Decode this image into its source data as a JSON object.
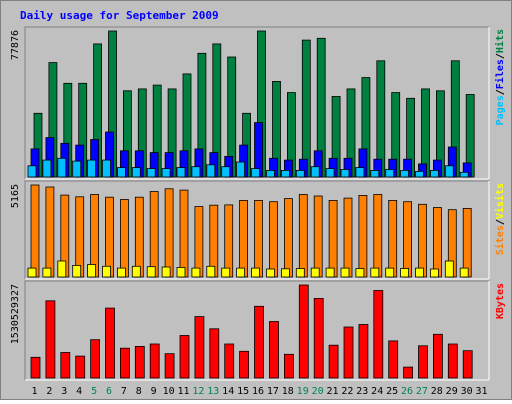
{
  "title": "Daily usage for September 2009",
  "colors": {
    "background": "#c0c0c0",
    "plot_bg": "#c0c0c0",
    "title": "#0000ff",
    "hits": "#008040",
    "files": "#0000ff",
    "pages": "#00c0ff",
    "visits": "#ff8000",
    "sites": "#ffff00",
    "kbytes": "#ff0000",
    "label_default": "#000000",
    "label_weekend": "#00805c"
  },
  "chart_data": [
    {
      "type": "bar",
      "panel": "hits-files-pages",
      "ymax_label": "77876",
      "ymax": 77876,
      "legend": [
        {
          "text": "Hits",
          "color": "#008040"
        },
        {
          "text": "/",
          "color": "#000000"
        },
        {
          "text": "Files",
          "color": "#0000ff"
        },
        {
          "text": "/",
          "color": "#000000"
        },
        {
          "text": "Pages",
          "color": "#00c0ff"
        }
      ],
      "series": [
        {
          "name": "Hits",
          "values": [
            34000,
            61000,
            50000,
            50000,
            71000,
            77876,
            46000,
            47000,
            49000,
            47000,
            55000,
            66000,
            71000,
            64000,
            34000,
            77876,
            51000,
            45000,
            73000,
            74000,
            43000,
            47000,
            53000,
            62000,
            45000,
            42000,
            47000,
            46000,
            62000,
            44000,
            0
          ]
        },
        {
          "name": "Files",
          "values": [
            15000,
            21000,
            18000,
            17000,
            20000,
            24000,
            14000,
            14000,
            13000,
            13000,
            14000,
            15000,
            13000,
            11000,
            17000,
            29000,
            10000,
            9000,
            9500,
            14000,
            10000,
            10000,
            15000,
            9500,
            9500,
            9500,
            7000,
            9000,
            16000,
            7500,
            0
          ]
        },
        {
          "name": "Pages",
          "values": [
            6000,
            9000,
            10000,
            8500,
            9000,
            9000,
            5000,
            5000,
            4500,
            4500,
            5000,
            5500,
            6500,
            5500,
            8000,
            4500,
            3500,
            3500,
            3500,
            5500,
            4500,
            4000,
            5000,
            3500,
            4000,
            3500,
            3000,
            3500,
            6000,
            2500,
            0
          ]
        }
      ]
    },
    {
      "type": "bar",
      "panel": "visits-sites",
      "ymax_label": "5165",
      "ymax": 5165,
      "legend": [
        {
          "text": "Visits",
          "color": "#ffff00"
        },
        {
          "text": "/",
          "color": "#000000"
        },
        {
          "text": "Sites",
          "color": "#ff8000"
        }
      ],
      "series": [
        {
          "name": "Visits",
          "values": [
            5165,
            5050,
            4600,
            4500,
            4630,
            4480,
            4350,
            4480,
            4800,
            4950,
            4880,
            3950,
            4030,
            4050,
            4300,
            4300,
            4230,
            4400,
            4630,
            4550,
            4300,
            4430,
            4580,
            4630,
            4300,
            4230,
            4080,
            3900,
            3780,
            3850,
            0
          ]
        },
        {
          "name": "Sites",
          "values": [
            500,
            500,
            900,
            650,
            700,
            600,
            500,
            600,
            580,
            560,
            540,
            500,
            600,
            500,
            500,
            500,
            450,
            460,
            480,
            500,
            500,
            500,
            480,
            500,
            500,
            480,
            500,
            450,
            900,
            500,
            0
          ]
        }
      ]
    },
    {
      "type": "bar",
      "panel": "kbytes",
      "ymax_label": "1530529327",
      "ymax": 1530529327,
      "legend": [
        {
          "text": "KBytes",
          "color": "#ff0000"
        }
      ],
      "series": [
        {
          "name": "KBytes",
          "values": [
            340000000,
            1270000000,
            420000000,
            360000000,
            630000000,
            1150000000,
            490000000,
            520000000,
            560000000,
            400000000,
            700000000,
            1010000000,
            810000000,
            560000000,
            440000000,
            1180000000,
            930000000,
            390000000,
            1530529327,
            1310000000,
            540000000,
            840000000,
            880000000,
            1440000000,
            610000000,
            180000000,
            530000000,
            720000000,
            560000000,
            450000000,
            0
          ]
        }
      ]
    }
  ],
  "x_labels": [
    {
      "text": "1",
      "weekend": false
    },
    {
      "text": "2",
      "weekend": false
    },
    {
      "text": "3",
      "weekend": false
    },
    {
      "text": "4",
      "weekend": false
    },
    {
      "text": "5",
      "weekend": true
    },
    {
      "text": "6",
      "weekend": true
    },
    {
      "text": "7",
      "weekend": false
    },
    {
      "text": "8",
      "weekend": false
    },
    {
      "text": "9",
      "weekend": false
    },
    {
      "text": "10",
      "weekend": false
    },
    {
      "text": "11",
      "weekend": false
    },
    {
      "text": "12",
      "weekend": true
    },
    {
      "text": "13",
      "weekend": true
    },
    {
      "text": "14",
      "weekend": false
    },
    {
      "text": "15",
      "weekend": false
    },
    {
      "text": "16",
      "weekend": false
    },
    {
      "text": "17",
      "weekend": false
    },
    {
      "text": "18",
      "weekend": false
    },
    {
      "text": "19",
      "weekend": true
    },
    {
      "text": "20",
      "weekend": true
    },
    {
      "text": "21",
      "weekend": false
    },
    {
      "text": "22",
      "weekend": false
    },
    {
      "text": "23",
      "weekend": false
    },
    {
      "text": "24",
      "weekend": false
    },
    {
      "text": "25",
      "weekend": false
    },
    {
      "text": "26",
      "weekend": true
    },
    {
      "text": "27",
      "weekend": true
    },
    {
      "text": "28",
      "weekend": false
    },
    {
      "text": "29",
      "weekend": false
    },
    {
      "text": "30",
      "weekend": false
    },
    {
      "text": "31",
      "weekend": false
    }
  ]
}
